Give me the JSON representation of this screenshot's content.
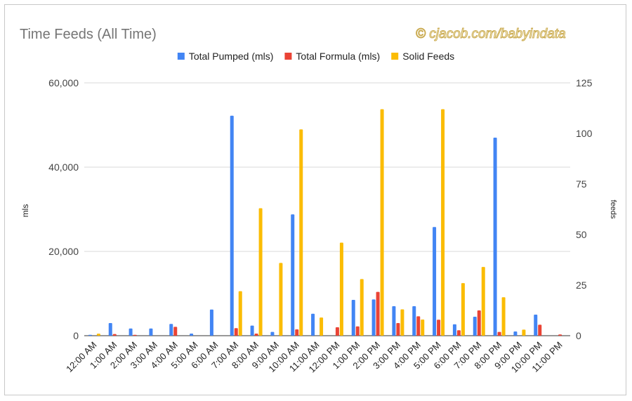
{
  "chart_data": {
    "type": "bar",
    "title": "Time Feeds (All Time)",
    "watermark": "© cjacob.com/babyindata",
    "ylabel": "mls",
    "y2label": "feeds",
    "ylim": [
      0,
      60000
    ],
    "y2lim": [
      0,
      125
    ],
    "yticks": [
      "0",
      "20,000",
      "40,000",
      "60,000"
    ],
    "y2ticks": [
      "0",
      "25",
      "50",
      "75",
      "100",
      "125"
    ],
    "legend_position": "top",
    "grid": true,
    "categories": [
      "12:00 AM",
      "1:00 AM",
      "2:00 AM",
      "3:00 AM",
      "4:00 AM",
      "5:00 AM",
      "6:00 AM",
      "7:00 AM",
      "8:00 AM",
      "9:00 AM",
      "10:00 AM",
      "11:00 AM",
      "12:00 PM",
      "1:00 PM",
      "2:00 PM",
      "3:00 PM",
      "4:00 PM",
      "5:00 PM",
      "6:00 PM",
      "7:00 PM",
      "8:00 PM",
      "9:00 PM",
      "10:00 PM",
      "11:00 PM"
    ],
    "series": [
      {
        "name": "Total Pumped (mls)",
        "axis": "left",
        "color": "#4285f4",
        "values": [
          200,
          3000,
          1700,
          1700,
          2800,
          500,
          6200,
          52200,
          2400,
          900,
          28800,
          5200,
          0,
          8500,
          8600,
          7000,
          7000,
          25800,
          2700,
          4500,
          47000,
          1000,
          5000,
          0
        ]
      },
      {
        "name": "Total Formula (mls)",
        "axis": "left",
        "color": "#ea4335",
        "values": [
          0,
          400,
          200,
          0,
          2100,
          0,
          0,
          1800,
          500,
          0,
          1500,
          0,
          2000,
          2200,
          10400,
          3000,
          4600,
          3800,
          1300,
          6000,
          900,
          0,
          2600,
          300
        ]
      },
      {
        "name": "Solid Feeds",
        "axis": "right",
        "color": "#fbbc04",
        "values": [
          1,
          0,
          0,
          0,
          0,
          0,
          0,
          22,
          63,
          36,
          102,
          9,
          46,
          28,
          112,
          13,
          8,
          112,
          26,
          34,
          19,
          3,
          0,
          0
        ]
      }
    ]
  }
}
